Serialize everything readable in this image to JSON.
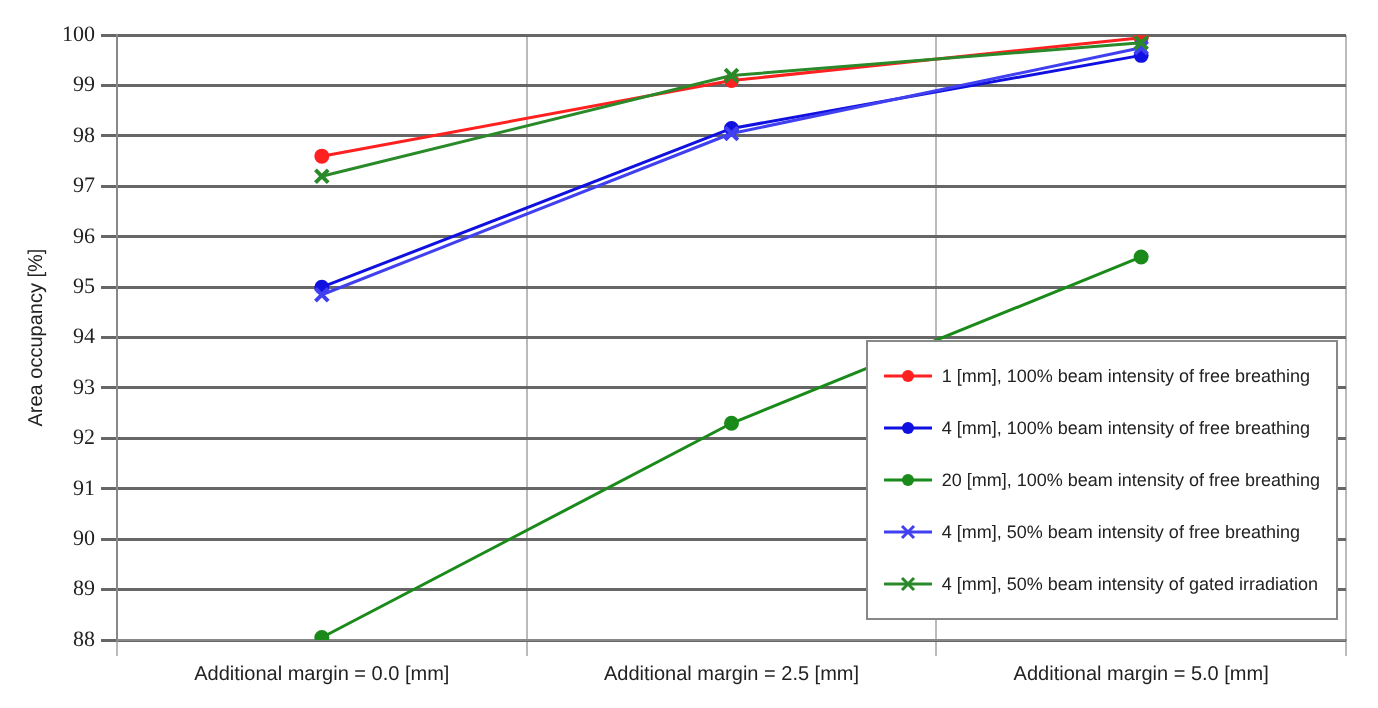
{
  "chart_data": {
    "type": "line",
    "ylabel": "Area occupancy [%]",
    "categories": [
      "Additional margin = 0.0 [mm]",
      "Additional margin = 2.5 [mm]",
      "Additional margin = 5.0 [mm]"
    ],
    "series": [
      {
        "name": "1 [mm], 100% beam intensity of free breathing",
        "color": "#ff2020",
        "marker": "circle",
        "values": [
          97.6,
          99.1,
          99.95
        ]
      },
      {
        "name": "4 [mm], 100% beam intensity of free breathing",
        "color": "#1010e0",
        "marker": "circle",
        "values": [
          95.0,
          98.15,
          99.6
        ]
      },
      {
        "name": "20 [mm], 100% beam intensity of free breathing",
        "color": "#1a8a1a",
        "marker": "circle",
        "values": [
          88.05,
          92.3,
          95.6
        ]
      },
      {
        "name": "4 [mm], 50% beam intensity of free breathing",
        "color": "#4040f0",
        "marker": "cross",
        "values": [
          94.85,
          98.05,
          99.75
        ]
      },
      {
        "name": "4 [mm], 50% beam intensity of gated irradiation",
        "color": "#2a8a2a",
        "marker": "cross",
        "values": [
          97.2,
          99.2,
          99.85
        ]
      }
    ],
    "ylim": [
      88,
      100
    ],
    "yticks": [
      88,
      89,
      90,
      91,
      92,
      93,
      94,
      95,
      96,
      97,
      98,
      99,
      100
    ],
    "grid": true,
    "legend": "bottom right"
  }
}
